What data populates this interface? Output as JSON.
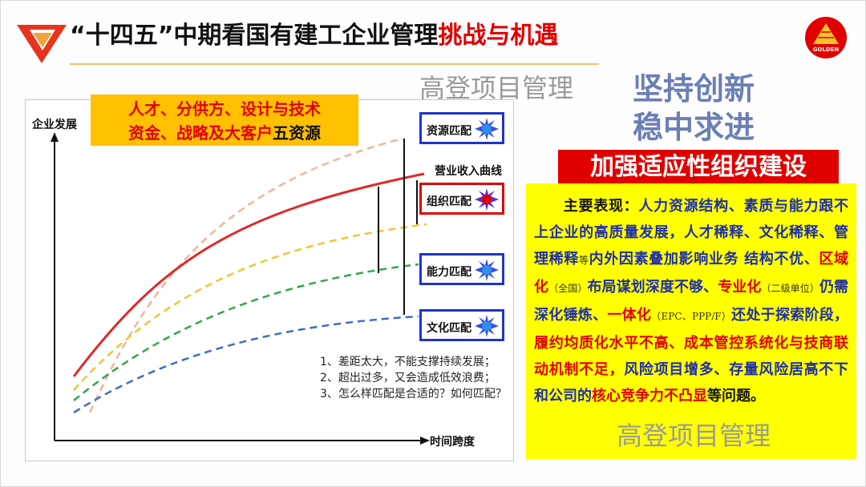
{
  "title": {
    "main": "“十四五”中期看国有建工企业管理",
    "highlight": "挑战与机遇"
  },
  "logo": {
    "text": "GOLDEN"
  },
  "watermark": {
    "top": "高登项目管理",
    "bottom": "高登项目管理"
  },
  "slogan": {
    "line1": "坚持创新",
    "line2": "稳中求进"
  },
  "five_resources": {
    "line1": "人才、分供方、设计与技术",
    "line2": "资金、战略及大客户",
    "line2_suffix": "五资源"
  },
  "chart": {
    "y_axis_label": "企业发展",
    "x_axis_label": "时间跨度",
    "curve_label": "营业收入曲线",
    "matches": [
      {
        "label": "资源匹配",
        "color": "#2e6fd6"
      },
      {
        "label": "组织匹配",
        "color": "#e00000"
      },
      {
        "label": "能力匹配",
        "color": "#2e6fd6"
      },
      {
        "label": "文化匹配",
        "color": "#2e6fd6"
      }
    ],
    "notes": [
      "1、差距太大，不能支撑持续发展；",
      "2、超出过多，又会造成低效浪费；",
      "3、怎么样匹配是合适的？如何匹配？"
    ]
  },
  "org_heading": "加强适应性组织建设",
  "body": {
    "p1": "主要表现：",
    "p2": "人力资源结构、素质与能力跟不上企业的高质量发展，人才稀释、文化稀释、管理稀释",
    "p3": "等",
    "p4": "内外因素叠加影响业务 结构不优、",
    "p5": "区域化",
    "p6": "（全国）",
    "p7": "布局谋划深度不够、",
    "p8": "专业化",
    "p9": "（二级单位）",
    "p10": "仍需深化锤炼、",
    "p11": "一体化",
    "p12": "（EPC、PPP/F）",
    "p13": "还处于探索阶段，",
    "p14": "履约均质化水平不高、成本管控系统化与技商联动机制不足，",
    "p15": "风险项目增多、存量风险居高不下和公司的",
    "p16": "核心竞争力不凸显",
    "p17": "等问题。"
  }
}
